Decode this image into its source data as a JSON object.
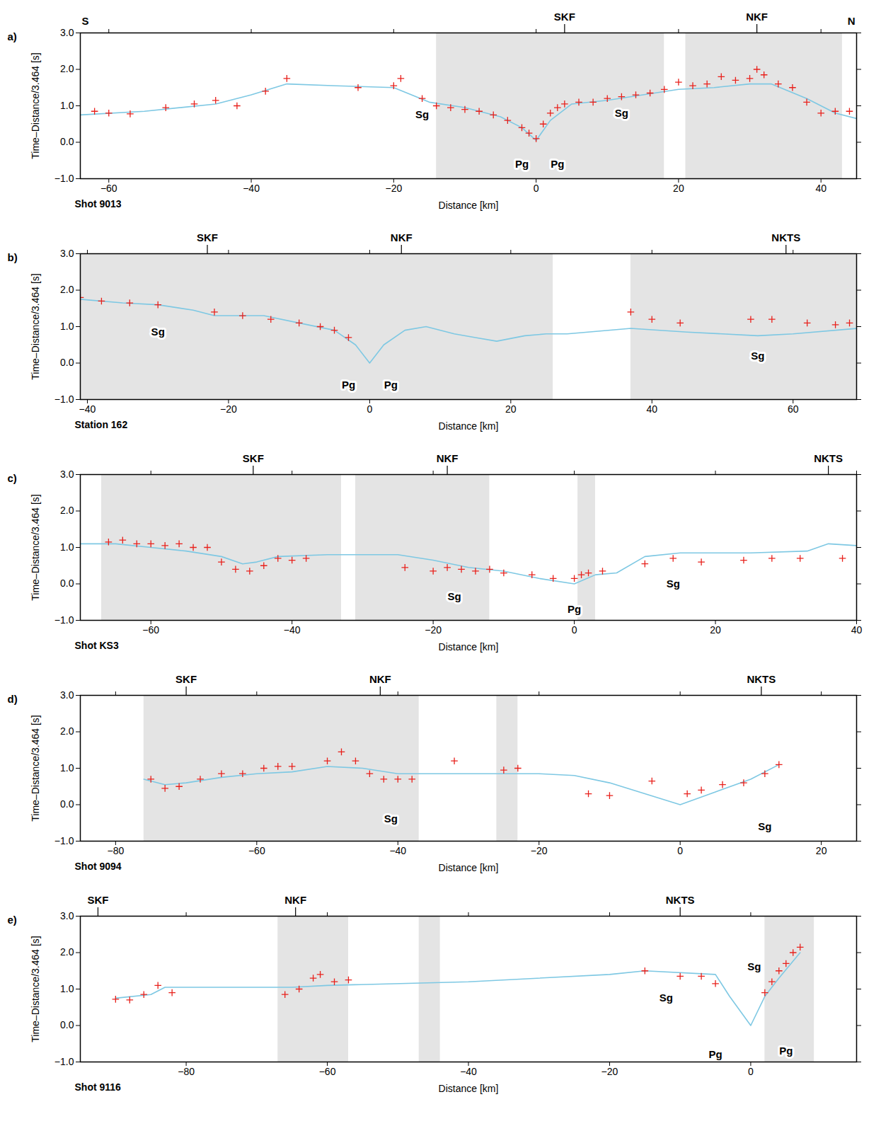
{
  "chart_data": [
    {
      "type": "line",
      "panel_label": "a)",
      "title": "Shot 9013",
      "x_label": "Distance [km]",
      "y_label": "Time–Distance/3.464 [s]",
      "xlim": [
        -64,
        45
      ],
      "ylim": [
        -1,
        3
      ],
      "xticks": [
        -60,
        -40,
        -20,
        0,
        20,
        40
      ],
      "yticks": [
        -1,
        0,
        1,
        2,
        3
      ],
      "end_labels": [
        "S",
        "N"
      ],
      "faults": [
        {
          "label": "SKF",
          "x": 4
        },
        {
          "label": "NKF",
          "x": 31
        }
      ],
      "phases": [
        {
          "label": "Sg",
          "x": -16,
          "y": 0.75
        },
        {
          "label": "Sg",
          "x": 12,
          "y": 0.8
        },
        {
          "label": "Pg",
          "x": -2,
          "y": -0.6
        },
        {
          "label": "Pg",
          "x": 3,
          "y": -0.6
        }
      ],
      "trace_coverage": [
        [
          -14,
          18
        ],
        [
          21,
          43
        ]
      ],
      "model": {
        "color": "#7ec8e3",
        "x": [
          -64,
          -55,
          -45,
          -40,
          -35,
          -28,
          -20,
          -15,
          -10,
          -5,
          -2,
          0,
          2,
          5,
          10,
          15,
          20,
          25,
          30,
          33,
          38,
          42,
          45
        ],
        "y": [
          0.75,
          0.85,
          1.05,
          1.3,
          1.6,
          1.55,
          1.5,
          1.1,
          0.95,
          0.7,
          0.4,
          0.05,
          0.6,
          1.05,
          1.15,
          1.3,
          1.45,
          1.5,
          1.6,
          1.6,
          1.2,
          0.8,
          0.65
        ]
      },
      "picks": {
        "color": "#e8201b",
        "marker": "plus",
        "x": [
          -62,
          -60,
          -57,
          -52,
          -48,
          -45,
          -42,
          -38,
          -35,
          -25,
          -20,
          -19,
          -16,
          -14,
          -12,
          -10,
          -8,
          -6,
          -4,
          -2,
          -1,
          0,
          1,
          2,
          3,
          4,
          6,
          8,
          10,
          12,
          14,
          16,
          18,
          20,
          22,
          24,
          26,
          28,
          30,
          31,
          32,
          34,
          36,
          38,
          40,
          42,
          44
        ],
        "y": [
          0.85,
          0.8,
          0.78,
          0.95,
          1.05,
          1.15,
          1.0,
          1.4,
          1.75,
          1.5,
          1.55,
          1.75,
          1.2,
          1.0,
          0.95,
          0.9,
          0.85,
          0.75,
          0.6,
          0.4,
          0.25,
          0.1,
          0.5,
          0.8,
          0.95,
          1.05,
          1.1,
          1.1,
          1.2,
          1.25,
          1.3,
          1.35,
          1.45,
          1.65,
          1.55,
          1.6,
          1.8,
          1.7,
          1.75,
          2.0,
          1.85,
          1.6,
          1.5,
          1.1,
          0.8,
          0.85,
          0.85
        ]
      }
    },
    {
      "type": "line",
      "panel_label": "b)",
      "title": "Station 162",
      "x_label": "Distance [km]",
      "y_label": "Time–Distance/3.464 [s]",
      "xlim": [
        -41,
        69
      ],
      "ylim": [
        -1,
        3
      ],
      "xticks": [
        -40,
        -20,
        0,
        20,
        40,
        60
      ],
      "yticks": [
        -1,
        0,
        1,
        2,
        3
      ],
      "faults": [
        {
          "label": "SKF",
          "x": -23
        },
        {
          "label": "NKF",
          "x": 4.5
        },
        {
          "label": "NKTS",
          "x": 59
        }
      ],
      "phases": [
        {
          "label": "Sg",
          "x": -30,
          "y": 0.85
        },
        {
          "label": "Sg",
          "x": 55,
          "y": 0.2
        },
        {
          "label": "Pg",
          "x": -3,
          "y": -0.6
        },
        {
          "label": "Pg",
          "x": 3,
          "y": -0.6
        }
      ],
      "trace_coverage": [
        [
          -41,
          26
        ],
        [
          37,
          69
        ]
      ],
      "model": {
        "color": "#7ec8e3",
        "x": [
          -41,
          -35,
          -30,
          -25,
          -22,
          -15,
          -10,
          -5,
          -2,
          0,
          2,
          5,
          8,
          12,
          15,
          18,
          22,
          25,
          28,
          37,
          45,
          55,
          60,
          69
        ],
        "y": [
          1.75,
          1.65,
          1.6,
          1.45,
          1.3,
          1.3,
          1.1,
          0.9,
          0.5,
          0.0,
          0.5,
          0.9,
          1.0,
          0.8,
          0.7,
          0.6,
          0.75,
          0.8,
          0.8,
          0.95,
          0.85,
          0.75,
          0.8,
          0.95
        ]
      },
      "picks": {
        "color": "#e8201b",
        "marker": "plus",
        "x": [
          -41,
          -38,
          -34,
          -30,
          -22,
          -18,
          -14,
          -10,
          -7,
          -5,
          -3,
          37,
          40,
          44,
          54,
          57,
          62,
          66,
          68
        ],
        "y": [
          1.8,
          1.7,
          1.65,
          1.6,
          1.4,
          1.3,
          1.2,
          1.1,
          1.0,
          0.9,
          0.7,
          1.4,
          1.2,
          1.1,
          1.2,
          1.2,
          1.1,
          1.05,
          1.1
        ]
      }
    },
    {
      "type": "line",
      "panel_label": "c)",
      "title": "Shot KS3",
      "x_label": "Distance [km]",
      "y_label": "Time–Distance/3.464 [s]",
      "xlim": [
        -70,
        40
      ],
      "ylim": [
        -1,
        3
      ],
      "xticks": [
        -60,
        -40,
        -20,
        0,
        20,
        40
      ],
      "yticks": [
        -1,
        0,
        1,
        2,
        3
      ],
      "faults": [
        {
          "label": "SKF",
          "x": -45.5
        },
        {
          "label": "NKF",
          "x": -18
        },
        {
          "label": "NKTS",
          "x": 36
        }
      ],
      "phases": [
        {
          "label": "Sg",
          "x": -17,
          "y": -0.35
        },
        {
          "label": "Sg",
          "x": 14,
          "y": 0.0
        },
        {
          "label": "Pg",
          "x": 0,
          "y": -0.7
        }
      ],
      "trace_coverage": [
        [
          -67,
          -33
        ],
        [
          -31,
          -12
        ],
        [
          0.5,
          3
        ]
      ],
      "model": {
        "color": "#7ec8e3",
        "x": [
          -70,
          -65,
          -60,
          -55,
          -50,
          -47,
          -45,
          -42,
          -35,
          -25,
          -20,
          -15,
          -10,
          -5,
          0,
          3,
          6,
          10,
          15,
          25,
          33,
          36,
          40
        ],
        "y": [
          1.1,
          1.1,
          1.0,
          0.9,
          0.75,
          0.55,
          0.6,
          0.75,
          0.8,
          0.8,
          0.65,
          0.45,
          0.35,
          0.15,
          0.0,
          0.25,
          0.3,
          0.75,
          0.85,
          0.85,
          0.9,
          1.1,
          1.05
        ]
      },
      "picks": {
        "color": "#e8201b",
        "marker": "plus",
        "x": [
          -66,
          -64,
          -62,
          -60,
          -58,
          -56,
          -54,
          -52,
          -50,
          -48,
          -46,
          -44,
          -42,
          -40,
          -38,
          -24,
          -20,
          -18,
          -16,
          -14,
          -12,
          -10,
          -6,
          -3,
          0,
          1,
          2,
          4,
          10,
          14,
          18,
          24,
          28,
          32,
          38
        ],
        "y": [
          1.15,
          1.2,
          1.1,
          1.1,
          1.05,
          1.1,
          1.0,
          1.0,
          0.6,
          0.4,
          0.35,
          0.5,
          0.7,
          0.65,
          0.7,
          0.45,
          0.35,
          0.45,
          0.4,
          0.35,
          0.4,
          0.3,
          0.25,
          0.15,
          0.15,
          0.25,
          0.3,
          0.35,
          0.55,
          0.7,
          0.6,
          0.65,
          0.7,
          0.7,
          0.7
        ]
      }
    },
    {
      "type": "line",
      "panel_label": "d)",
      "title": "Shot 9094",
      "x_label": "Distance [km]",
      "y_label": "Time–Distance/3.464 [s]",
      "xlim": [
        -85,
        25
      ],
      "ylim": [
        -1,
        3
      ],
      "xticks": [
        -80,
        -60,
        -40,
        -20,
        0,
        20
      ],
      "yticks": [
        -1,
        0,
        1,
        2,
        3
      ],
      "faults": [
        {
          "label": "SKF",
          "x": -70
        },
        {
          "label": "NKF",
          "x": -42.5
        },
        {
          "label": "NKTS",
          "x": 11.5
        }
      ],
      "phases": [
        {
          "label": "Sg",
          "x": -41,
          "y": -0.4
        },
        {
          "label": "Sg",
          "x": 12,
          "y": -0.6
        }
      ],
      "trace_coverage": [
        [
          -76,
          -37
        ],
        [
          -26,
          -23
        ]
      ],
      "model": {
        "color": "#7ec8e3",
        "x": [
          -76,
          -73,
          -70,
          -65,
          -60,
          -55,
          -50,
          -45,
          -40,
          -30,
          -20,
          -15,
          -10,
          -5,
          0,
          5,
          10,
          14
        ],
        "y": [
          0.7,
          0.55,
          0.6,
          0.75,
          0.85,
          0.9,
          1.05,
          1.0,
          0.85,
          0.85,
          0.85,
          0.8,
          0.6,
          0.3,
          0.0,
          0.35,
          0.7,
          1.1
        ]
      },
      "picks": {
        "color": "#e8201b",
        "marker": "plus",
        "x": [
          -75,
          -73,
          -71,
          -68,
          -65,
          -62,
          -59,
          -57,
          -55,
          -50,
          -48,
          -46,
          -44,
          -42,
          -40,
          -38,
          -32,
          -25,
          -23,
          -13,
          -10,
          -4,
          1,
          3,
          6,
          9,
          12,
          14
        ],
        "y": [
          0.7,
          0.45,
          0.5,
          0.7,
          0.85,
          0.85,
          1.0,
          1.05,
          1.05,
          1.2,
          1.45,
          1.2,
          0.85,
          0.7,
          0.7,
          0.7,
          1.2,
          0.95,
          1.0,
          0.3,
          0.25,
          0.65,
          0.3,
          0.4,
          0.55,
          0.6,
          0.85,
          1.1
        ]
      }
    },
    {
      "type": "line",
      "panel_label": "e)",
      "title": "Shot 9116",
      "x_label": "Distance [km]",
      "y_label": "Time–Distance/3.464 [s]",
      "xlim": [
        -95,
        15
      ],
      "ylim": [
        -1,
        3
      ],
      "xticks": [
        -80,
        -60,
        -40,
        -20,
        0
      ],
      "yticks": [
        -1,
        0,
        1,
        2,
        3
      ],
      "faults": [
        {
          "label": "SKF",
          "x": -92.5
        },
        {
          "label": "NKF",
          "x": -64.5
        },
        {
          "label": "NKTS",
          "x": -10
        }
      ],
      "phases": [
        {
          "label": "Sg",
          "x": -12,
          "y": 0.75
        },
        {
          "label": "Sg",
          "x": 0.5,
          "y": 1.6
        },
        {
          "label": "Pg",
          "x": -5,
          "y": -0.8
        },
        {
          "label": "Pg",
          "x": 5,
          "y": -0.7
        }
      ],
      "trace_coverage": [
        [
          -67,
          -57
        ],
        [
          -47,
          -44
        ],
        [
          2,
          9
        ]
      ],
      "model": {
        "color": "#7ec8e3",
        "x": [
          -90,
          -85,
          -83,
          -75,
          -65,
          -60,
          -40,
          -20,
          -15,
          -5,
          -3,
          0,
          2,
          4,
          7
        ],
        "y": [
          0.75,
          0.85,
          1.05,
          1.05,
          1.05,
          1.1,
          1.2,
          1.4,
          1.5,
          1.4,
          0.8,
          0.0,
          0.8,
          1.3,
          2.0
        ]
      },
      "picks": {
        "color": "#e8201b",
        "marker": "plus",
        "x": [
          -90,
          -88,
          -86,
          -84,
          -82,
          -66,
          -64,
          -62,
          -61,
          -59,
          -57,
          -15,
          -10,
          -7,
          -5,
          2,
          3,
          4,
          5,
          6,
          7
        ],
        "y": [
          0.72,
          0.7,
          0.85,
          1.1,
          0.9,
          0.85,
          1.0,
          1.3,
          1.4,
          1.2,
          1.25,
          1.5,
          1.35,
          1.35,
          1.15,
          0.9,
          1.2,
          1.5,
          1.7,
          2.0,
          2.15
        ]
      }
    }
  ]
}
